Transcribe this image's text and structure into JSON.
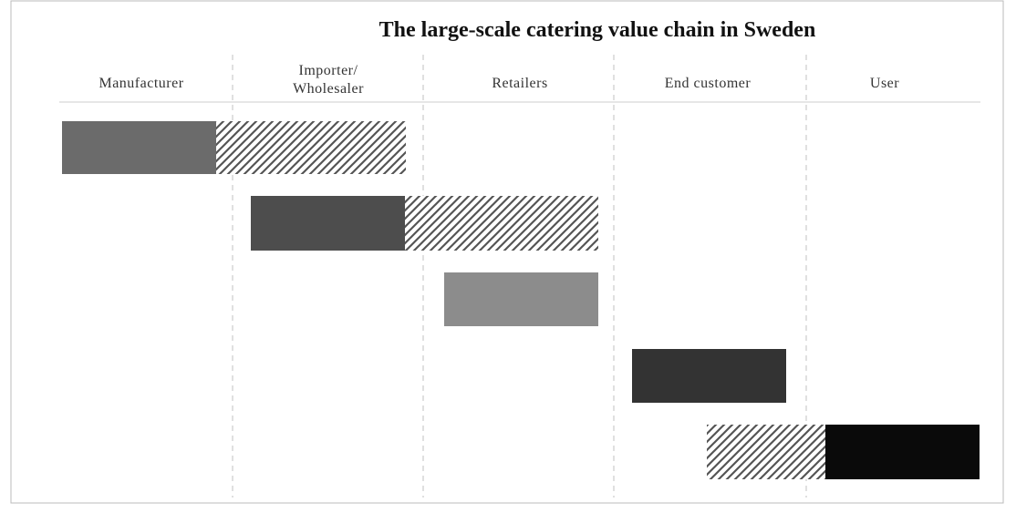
{
  "header": {
    "title": "The large-scale catering value chain in Sweden"
  },
  "columns": [
    [
      "Manufacturer"
    ],
    [
      "Importer/",
      "Wholesaler"
    ],
    [
      "Retailers"
    ],
    [
      "End customer"
    ],
    [
      "User"
    ]
  ]
}
